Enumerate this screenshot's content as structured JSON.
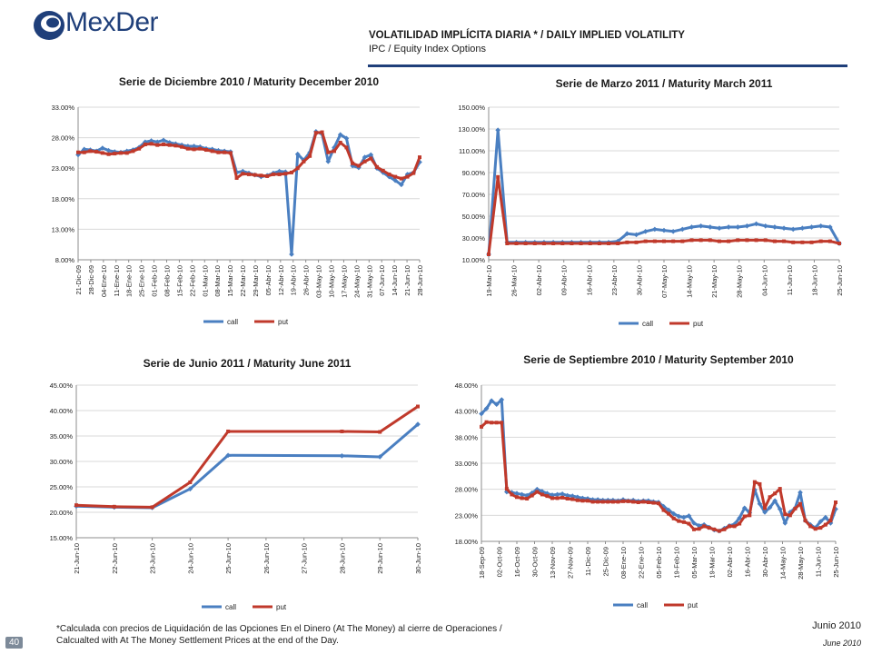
{
  "brand": {
    "logo_text": "MexDer"
  },
  "header": {
    "title": "VOLATILIDAD IMPLÍCITA DIARIA * / DAILY IMPLIED VOLATILITY",
    "subtitle": "IPC / Equity Index Options"
  },
  "footer": {
    "note_line1": "*Calculada con precios de Liquidación de las Opciones En el Dinero (At The Money) al cierre de Operaciones /",
    "note_line2": "Calcualted with At The Money Settlement Prices at the end of the Day.",
    "page_number": "40",
    "date_es": "Junio 2010",
    "date_en": "June 2010"
  },
  "colors": {
    "call": "#4a7fc1",
    "put": "#c0392b",
    "grid": "#d9d9d9",
    "brand": "#1f3f7a"
  },
  "chart_data": [
    {
      "id": "dec",
      "type": "line",
      "title": "Serie de Diciembre 2010 / Maturity December 2010",
      "ylim": [
        8,
        33
      ],
      "yticks": [
        "8.00%",
        "13.00%",
        "18.00%",
        "23.00%",
        "28.00%",
        "33.00%"
      ],
      "xticks": [
        "21-Dic-09",
        "28-Dic-09",
        "04-Ene-10",
        "11-Ene-10",
        "18-Ene-10",
        "25-Ene-10",
        "01-Feb-10",
        "08-Feb-10",
        "15-Feb-10",
        "22-Feb-10",
        "01-Mar-10",
        "08-Mar-10",
        "15-Mar-10",
        "22-Mar-10",
        "29-Mar-10",
        "05-Abr-10",
        "12-Abr-10",
        "19-Abr-10",
        "26-Abr-10",
        "03-May-10",
        "10-May-10",
        "17-May-10",
        "24-May-10",
        "31-May-10",
        "07-Jun-10",
        "14-Jun-10",
        "21-Jun-10",
        "28-Jun-10"
      ],
      "legend": [
        "call",
        "put"
      ],
      "series": [
        {
          "name": "call",
          "values": [
            25.2,
            26.1,
            26.0,
            25.8,
            26.3,
            25.9,
            25.7,
            25.6,
            25.8,
            26.0,
            26.4,
            27.3,
            27.5,
            27.3,
            27.6,
            27.2,
            27.0,
            26.8,
            26.6,
            26.6,
            26.5,
            26.2,
            26.1,
            25.9,
            25.8,
            25.7,
            22.3,
            22.5,
            22.2,
            21.9,
            21.6,
            21.8,
            22.2,
            22.5,
            22.4,
            8.9,
            25.3,
            24.3,
            25.6,
            29.0,
            28.6,
            24.1,
            26.4,
            28.5,
            27.9,
            23.4,
            23.1,
            24.8,
            25.2,
            23.0,
            22.3,
            21.6,
            21.0,
            20.3,
            22.0,
            22.3,
            24.0
          ]
        },
        {
          "name": "put",
          "values": [
            25.6,
            25.6,
            25.8,
            25.7,
            25.5,
            25.3,
            25.4,
            25.5,
            25.5,
            25.8,
            26.2,
            26.9,
            27.0,
            26.8,
            26.9,
            26.8,
            26.7,
            26.5,
            26.2,
            26.1,
            26.2,
            26.0,
            25.8,
            25.6,
            25.6,
            25.5,
            21.4,
            22.1,
            22.0,
            21.9,
            21.8,
            21.7,
            22.0,
            22.0,
            22.1,
            22.3,
            23.0,
            24.1,
            25.0,
            28.8,
            28.9,
            25.6,
            25.8,
            27.2,
            26.4,
            23.8,
            23.4,
            24.1,
            24.6,
            23.2,
            22.6,
            22.0,
            21.6,
            21.3,
            21.6,
            22.2,
            24.8
          ]
        }
      ]
    },
    {
      "id": "mar",
      "type": "line",
      "title": "Serie de Marzo 2011 / Maturity March 2011",
      "ylim": [
        10,
        150
      ],
      "yticks": [
        "10.00%",
        "30.00%",
        "50.00%",
        "70.00%",
        "90.00%",
        "110.00%",
        "130.00%",
        "150.00%"
      ],
      "xticks": [
        "19-Mar-10",
        "26-Mar-10",
        "02-Abr-10",
        "09-Abr-10",
        "16-Abr-10",
        "23-Abr-10",
        "30-Abr-10",
        "07-May-10",
        "14-May-10",
        "21-May-10",
        "28-May-10",
        "04-Jun-10",
        "11-Jun-10",
        "18-Jun-10",
        "25-Jun-10"
      ],
      "legend": [
        "call",
        "put"
      ],
      "series": [
        {
          "name": "call",
          "values": [
            15,
            129,
            26,
            26,
            26,
            26,
            26,
            26,
            26,
            26,
            26,
            26,
            26,
            26,
            27,
            34,
            33,
            36,
            38,
            37,
            36,
            38,
            40,
            41,
            40,
            39,
            40,
            40,
            41,
            43,
            41,
            40,
            39,
            38,
            39,
            40,
            41,
            40,
            25
          ]
        },
        {
          "name": "put",
          "values": [
            15,
            86,
            25,
            25,
            25,
            25,
            25,
            25,
            25,
            25,
            25,
            25,
            25,
            25,
            25,
            26,
            26,
            27,
            27,
            27,
            27,
            27,
            28,
            28,
            28,
            27,
            27,
            28,
            28,
            28,
            28,
            27,
            27,
            26,
            26,
            26,
            27,
            27,
            25
          ]
        }
      ]
    },
    {
      "id": "jun",
      "type": "line",
      "title": "Serie de Junio 2011 / Maturity June 2011",
      "ylim": [
        15,
        45
      ],
      "yticks": [
        "15.00%",
        "20.00%",
        "25.00%",
        "30.00%",
        "35.00%",
        "40.00%",
        "45.00%"
      ],
      "xticks": [
        "21-Jun-10",
        "22-Jun-10",
        "23-Jun-10",
        "24-Jun-10",
        "25-Jun-10",
        "26-Jun-10",
        "27-Jun-10",
        "28-Jun-10",
        "29-Jun-10",
        "30-Jun-10"
      ],
      "legend": [
        "call",
        "put"
      ],
      "series": [
        {
          "name": "call",
          "values": [
            21.2,
            21.0,
            20.9,
            24.6,
            31.2,
            null,
            null,
            31.1,
            30.9,
            37.3
          ]
        },
        {
          "name": "put",
          "values": [
            21.4,
            21.1,
            21.0,
            25.9,
            35.9,
            null,
            null,
            35.9,
            35.8,
            40.8
          ]
        }
      ]
    },
    {
      "id": "sep",
      "type": "line",
      "title": "Serie de Septiembre 2010 / Maturity September 2010",
      "ylim": [
        18,
        48
      ],
      "yticks": [
        "18.00%",
        "23.00%",
        "28.00%",
        "33.00%",
        "38.00%",
        "43.00%",
        "48.00%"
      ],
      "xticks": [
        "18-Sep-09",
        "02-Oct-09",
        "16-Oct-09",
        "30-Oct-09",
        "13-Nov-09",
        "27-Nov-09",
        "11-Dic-09",
        "25-Dic-09",
        "08-Ene-10",
        "22-Ene-10",
        "05-Feb-10",
        "19-Feb-10",
        "05-Mar-10",
        "19-Mar-10",
        "02-Abr-10",
        "16-Abr-10",
        "30-Abr-10",
        "14-May-10",
        "28-May-10",
        "11-Jun-10",
        "25-Jun-10"
      ],
      "legend": [
        "call",
        "put"
      ],
      "series": [
        {
          "name": "call",
          "values": [
            42.5,
            43.5,
            45.0,
            44.3,
            45.2,
            27.5,
            27.4,
            27.2,
            27.0,
            26.8,
            27.3,
            28.0,
            27.6,
            27.2,
            26.9,
            27.0,
            27.1,
            26.8,
            26.7,
            26.5,
            26.3,
            26.2,
            26.0,
            26.0,
            25.9,
            25.9,
            25.9,
            25.8,
            26.0,
            25.8,
            25.9,
            25.7,
            25.8,
            25.8,
            25.6,
            25.5,
            24.7,
            24.0,
            23.3,
            22.8,
            22.6,
            22.9,
            21.5,
            21.0,
            21.2,
            20.7,
            20.2,
            20.0,
            20.5,
            21.0,
            21.3,
            22.5,
            24.4,
            23.5,
            27.9,
            25.2,
            23.6,
            24.5,
            25.8,
            24.2,
            21.5,
            23.6,
            24.4,
            27.4,
            22.0,
            21.2,
            20.6,
            21.8,
            22.6,
            21.5,
            24.2
          ]
        },
        {
          "name": "put",
          "values": [
            40.0,
            40.9,
            40.8,
            40.8,
            40.8,
            28.1,
            27.0,
            26.5,
            26.3,
            26.2,
            26.8,
            27.5,
            27.0,
            26.7,
            26.3,
            26.3,
            26.4,
            26.2,
            26.1,
            25.9,
            25.8,
            25.8,
            25.6,
            25.6,
            25.6,
            25.6,
            25.6,
            25.6,
            25.7,
            25.7,
            25.6,
            25.5,
            25.6,
            25.5,
            25.4,
            25.3,
            24.0,
            23.3,
            22.4,
            21.9,
            21.7,
            21.4,
            20.3,
            20.4,
            20.9,
            20.6,
            20.3,
            20.0,
            20.3,
            20.9,
            20.9,
            21.4,
            22.8,
            23.0,
            29.4,
            29.0,
            24.4,
            26.5,
            27.2,
            28.1,
            23.2,
            23.0,
            24.3,
            25.2,
            22.0,
            20.9,
            20.4,
            20.6,
            21.2,
            22.0,
            25.5
          ]
        }
      ]
    }
  ]
}
